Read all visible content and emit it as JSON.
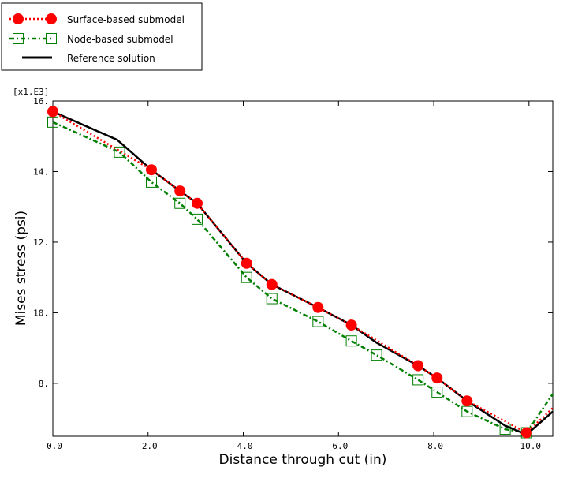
{
  "chart_data": {
    "type": "line",
    "title": "",
    "xlabel": "Distance through cut (in)",
    "ylabel": "Mises stress (psi)",
    "y_multiplier_label": "[x1.E3]",
    "xlim": [
      0,
      10.5
    ],
    "ylim": [
      6.5,
      16.0
    ],
    "x_ticks": [
      "0.0",
      "2.0",
      "4.0",
      "6.0",
      "8.0",
      "10.0"
    ],
    "y_ticks": [
      "8.",
      "10.",
      "12.",
      "14.",
      "16."
    ],
    "grid": false,
    "legend_position": "top-left",
    "series": [
      {
        "name": "Surface-based submodel",
        "color": "#ff0000",
        "marker": "filled-circle",
        "line": "dotted",
        "x": [
          0.0,
          2.07,
          2.67,
          3.03,
          4.07,
          4.6,
          5.57,
          6.27,
          7.67,
          8.07,
          8.7,
          9.95,
          10.5
        ],
        "y": [
          15.7,
          14.05,
          13.45,
          13.1,
          11.4,
          10.8,
          10.15,
          9.65,
          8.5,
          8.15,
          7.5,
          6.6,
          7.3
        ]
      },
      {
        "name": "Node-based submodel",
        "color": "#008000",
        "marker": "open-square",
        "line": "dash-dot",
        "x": [
          0.0,
          1.4,
          2.07,
          2.67,
          3.03,
          4.07,
          4.6,
          5.57,
          6.27,
          6.8,
          7.67,
          8.07,
          8.7,
          9.5,
          9.95,
          10.5
        ],
        "y": [
          15.4,
          14.55,
          13.7,
          13.1,
          12.65,
          11.0,
          10.4,
          9.75,
          9.2,
          8.8,
          8.1,
          7.75,
          7.2,
          6.7,
          6.6,
          7.7
        ]
      },
      {
        "name": "Reference solution",
        "color": "#000000",
        "marker": "none",
        "line": "solid",
        "x": [
          0.0,
          1.35,
          2.07,
          2.67,
          3.03,
          4.07,
          4.6,
          5.57,
          6.27,
          6.8,
          7.67,
          8.07,
          8.7,
          9.5,
          9.95,
          10.5
        ],
        "y": [
          15.7,
          14.9,
          14.05,
          13.45,
          13.1,
          11.4,
          10.8,
          10.15,
          9.65,
          9.15,
          8.5,
          8.15,
          7.5,
          6.8,
          6.55,
          7.2
        ]
      }
    ]
  }
}
